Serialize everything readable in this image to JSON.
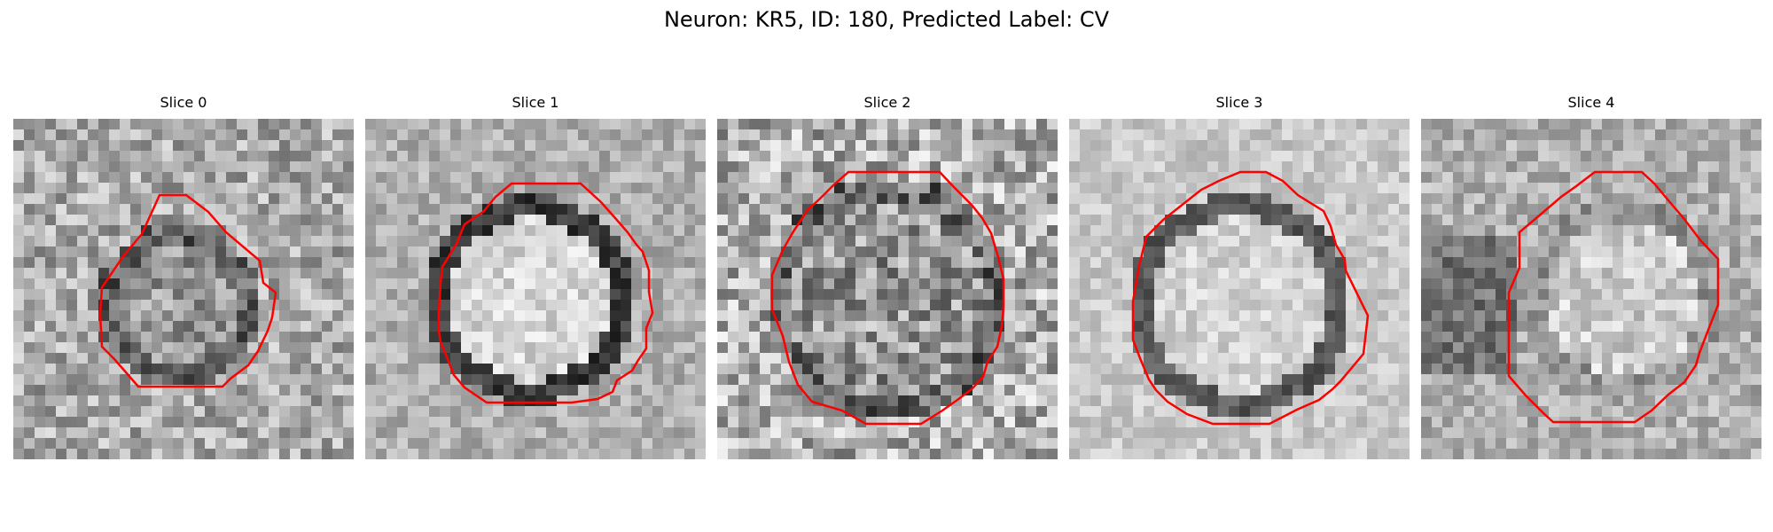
{
  "figure": {
    "title": "Neuron: KR5, ID: 180, Predicted Label: CV",
    "colormap": "grayscale",
    "contour_color": "#ff0000",
    "background_color": "#ffffff"
  },
  "slices": [
    {
      "label": "Slice 0",
      "image_description": "noisy grayscale micrograph patch, faint dark-rimmed cell, darker speckles on right side",
      "contour": "small irregular octagon, upper-middle region"
    },
    {
      "label": "Slice 1",
      "image_description": "bright round cell body with a thick dark membrane ring",
      "contour": "large octagon tracing the dark ring"
    },
    {
      "label": "Slice 2",
      "image_description": "highly speckled noisy patch with a faint circular structure",
      "contour": "large octagon slightly above center"
    },
    {
      "label": "Slice 3",
      "image_description": "smooth bright cell interior surrounded by a dark ring",
      "contour": "large octagon on the dark ring"
    },
    {
      "label": "Slice 4",
      "image_description": "bright cell with dark region on left side",
      "contour": "octagon shifted to the right"
    }
  ]
}
